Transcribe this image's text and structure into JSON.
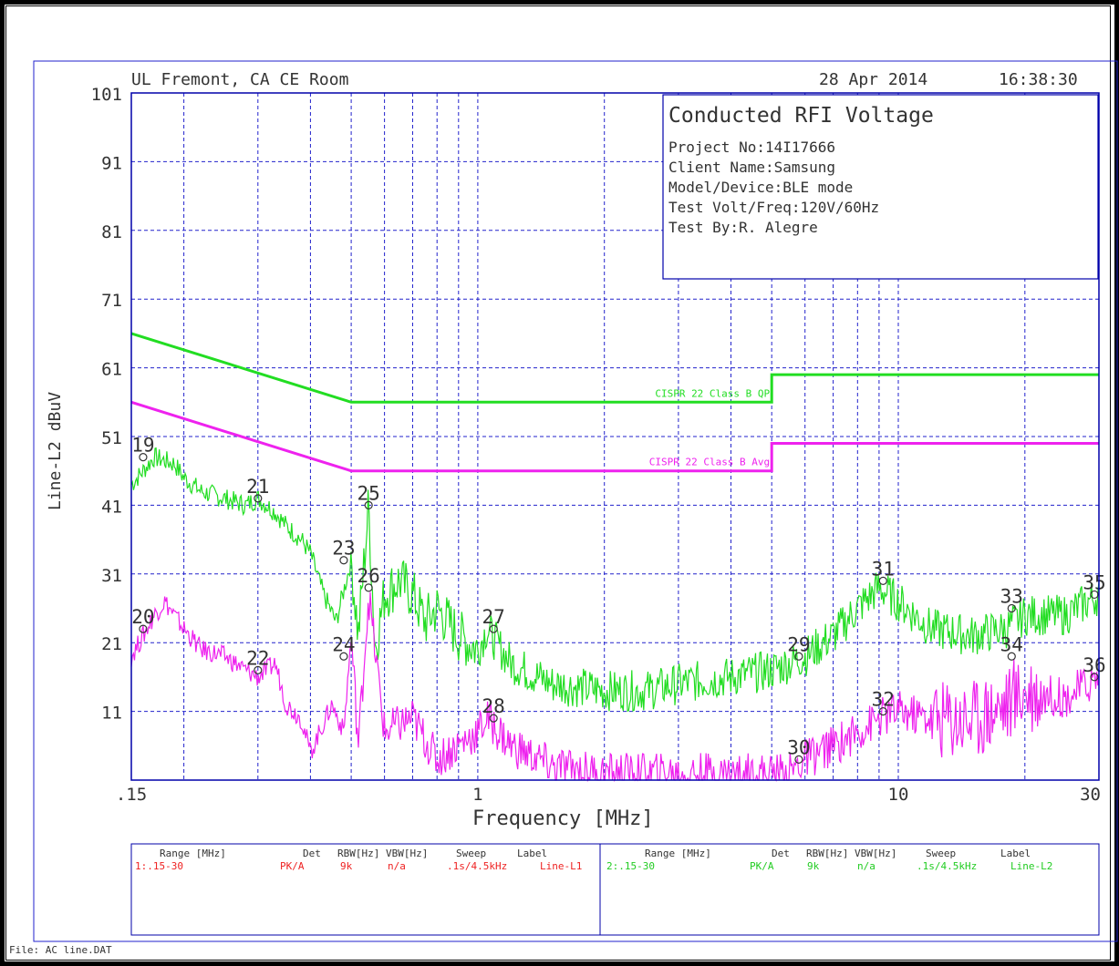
{
  "header": {
    "lab": "UL Fremont, CA CE Room",
    "date": "28 Apr 2014",
    "time": "16:38:30"
  },
  "info_box": {
    "title": "Conducted RFI Voltage",
    "lines": [
      "Project No:14I17666",
      "Client Name:Samsung",
      "Model/Device:BLE mode",
      "Test Volt/Freq:120V/60Hz",
      "Test By:R. Alegre"
    ]
  },
  "footer": {
    "file": "File: AC line.DAT"
  },
  "colors": {
    "grid": "#2222cc",
    "l2_trace": "#22dd22",
    "l1_trace": "#ee22ee",
    "axis": "#0000aa",
    "table_red": "#ee2222",
    "table_green": "#22cc22"
  },
  "legend_table": {
    "headers": [
      "Range [MHz]",
      "Det",
      "RBW[Hz]",
      "VBW[Hz]",
      "Sweep",
      "Label"
    ],
    "rows": [
      [
        "1:.15-30",
        "PK/A",
        "9k",
        "n/a",
        ".1s/4.5kHz",
        "Line-L1"
      ],
      [
        "2:.15-30",
        "PK/A",
        "9k",
        "n/a",
        ".1s/4.5kHz",
        "Line-L2"
      ]
    ]
  },
  "chart_data": {
    "type": "line",
    "title": "",
    "xlabel": "Frequency [MHz]",
    "ylabel": "Line-L2 dBuV",
    "xscale": "log",
    "xlim": [
      0.15,
      30
    ],
    "ylim": [
      1,
      101
    ],
    "xticks": [
      0.15,
      1,
      10,
      30
    ],
    "xtick_labels": [
      ".15",
      "1",
      "10",
      "30"
    ],
    "yticks": [
      11,
      21,
      31,
      41,
      51,
      61,
      71,
      81,
      91,
      101
    ],
    "ytick_labels": [
      "11",
      "21",
      "31",
      "41",
      "51",
      "61",
      "71",
      "81",
      "91",
      "101"
    ],
    "grid": true,
    "limits": [
      {
        "name": "CISPR 22 Class B QP",
        "x": [
          0.15,
          0.5,
          5,
          5,
          30
        ],
        "y": [
          66,
          56,
          56,
          60,
          60
        ]
      },
      {
        "name": "CISPR 22 Class B Avg",
        "x": [
          0.15,
          0.5,
          5,
          5,
          30
        ],
        "y": [
          56,
          46,
          46,
          50,
          50
        ]
      }
    ],
    "series": [
      {
        "x": [
          0.15,
          0.16,
          0.17,
          0.19,
          0.2,
          0.22,
          0.25,
          0.28,
          0.3,
          0.33,
          0.35,
          0.38,
          0.4,
          0.43,
          0.46,
          0.5,
          0.52,
          0.55,
          0.57,
          0.6,
          0.65,
          0.7,
          0.75,
          0.8,
          0.9,
          1.0,
          1.05,
          1.2,
          1.5,
          2.0,
          2.5,
          3.0,
          4.0,
          5.0,
          6.0,
          7.0,
          8.0,
          9.0,
          10.0,
          12.0,
          15.0,
          18.0,
          20.0,
          25.0,
          30.0
        ],
        "y": [
          44,
          46,
          48,
          47,
          45,
          43,
          42,
          41,
          42,
          40,
          38,
          36,
          34,
          28,
          24,
          33,
          22,
          41,
          20,
          28,
          30,
          28,
          24,
          26,
          22,
          20,
          23,
          18,
          15,
          14,
          14,
          15,
          16,
          17,
          19,
          22,
          26,
          29,
          27,
          23,
          22,
          23,
          25,
          25,
          28
        ]
      },
      {
        "x": [
          0.15,
          0.16,
          0.17,
          0.18,
          0.2,
          0.22,
          0.25,
          0.28,
          0.3,
          0.33,
          0.35,
          0.38,
          0.4,
          0.45,
          0.48,
          0.5,
          0.52,
          0.55,
          0.6,
          0.7,
          0.8,
          1.0,
          1.05,
          1.2,
          1.5,
          2.0,
          3.0,
          4.0,
          5.0,
          5.5,
          6.0,
          7.0,
          8.0,
          9.0,
          10.0,
          12.0,
          15.0,
          18.0,
          20.0,
          25.0,
          30.0
        ],
        "y": [
          19,
          22,
          25,
          27,
          23,
          20,
          19,
          17,
          16,
          18,
          12,
          10,
          5,
          12,
          8,
          22,
          6,
          28,
          8,
          10,
          4,
          8,
          10,
          6,
          3,
          2,
          2,
          2,
          2,
          2,
          4,
          6,
          8,
          10,
          11,
          10,
          10,
          12,
          14,
          13,
          16
        ]
      }
    ],
    "markers": [
      {
        "label": "19",
        "x": 0.16,
        "y": 48
      },
      {
        "label": "20",
        "x": 0.16,
        "y": 23
      },
      {
        "label": "21",
        "x": 0.3,
        "y": 42
      },
      {
        "label": "22",
        "x": 0.3,
        "y": 17
      },
      {
        "label": "23",
        "x": 0.48,
        "y": 33
      },
      {
        "label": "24",
        "x": 0.48,
        "y": 19
      },
      {
        "label": "25",
        "x": 0.55,
        "y": 41
      },
      {
        "label": "26",
        "x": 0.55,
        "y": 29
      },
      {
        "label": "27",
        "x": 1.09,
        "y": 23
      },
      {
        "label": "28",
        "x": 1.09,
        "y": 10
      },
      {
        "label": "29",
        "x": 5.8,
        "y": 19
      },
      {
        "label": "30",
        "x": 5.8,
        "y": 4
      },
      {
        "label": "31",
        "x": 9.2,
        "y": 30
      },
      {
        "label": "32",
        "x": 9.2,
        "y": 11
      },
      {
        "label": "33",
        "x": 18.6,
        "y": 26
      },
      {
        "label": "34",
        "x": 18.6,
        "y": 19
      },
      {
        "label": "35",
        "x": 30,
        "y": 28
      },
      {
        "label": "36",
        "x": 30,
        "y": 16
      }
    ]
  }
}
